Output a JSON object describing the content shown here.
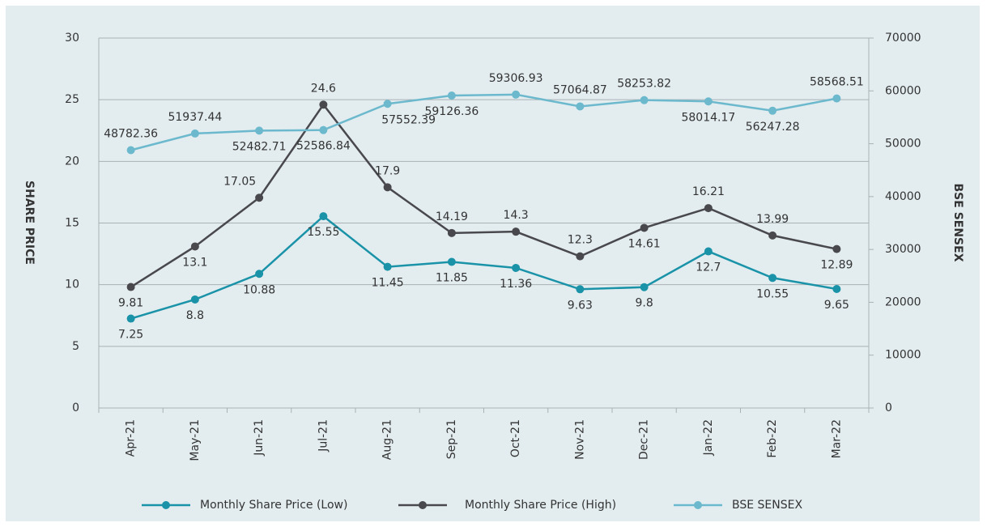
{
  "chart_data": {
    "type": "line",
    "categories": [
      "Apr-21",
      "May-21",
      "Jun-21",
      "Jul-21",
      "Aug-21",
      "Sep-21",
      "Oct-21",
      "Nov-21",
      "Dec-21",
      "Jan-22",
      "Feb-22",
      "Mar-22"
    ],
    "series": [
      {
        "name": "Monthly Share Price (Low)",
        "color": "#1a93a8",
        "values": [
          7.25,
          8.8,
          10.88,
          15.55,
          11.45,
          11.85,
          11.36,
          9.63,
          9.8,
          12.7,
          10.55,
          9.65
        ]
      },
      {
        "name": "Monthly Share Price (High)",
        "color": "#48484d",
        "values": [
          9.81,
          13.1,
          17.05,
          24.6,
          17.9,
          14.19,
          14.3,
          12.3,
          14.61,
          16.21,
          13.99,
          12.89
        ]
      },
      {
        "name": "BSE SENSEX",
        "color": "#6cb9cd",
        "axis": "y2",
        "values": [
          48782.36,
          51937.44,
          52482.71,
          52586.84,
          57552.39,
          59126.36,
          59306.93,
          57064.87,
          58253.82,
          58014.17,
          56247.28,
          58568.51
        ]
      }
    ],
    "ylabel": "SHARE PRICE",
    "y2label": "BSE SENSEX",
    "ylim": [
      0,
      30
    ],
    "yticks": [
      0,
      5,
      10,
      15,
      20,
      25,
      30
    ],
    "y2lim": [
      0,
      70000
    ],
    "y2ticks": [
      0,
      10000,
      20000,
      30000,
      40000,
      50000,
      60000,
      70000
    ],
    "grid": true,
    "legend": "bottom"
  }
}
